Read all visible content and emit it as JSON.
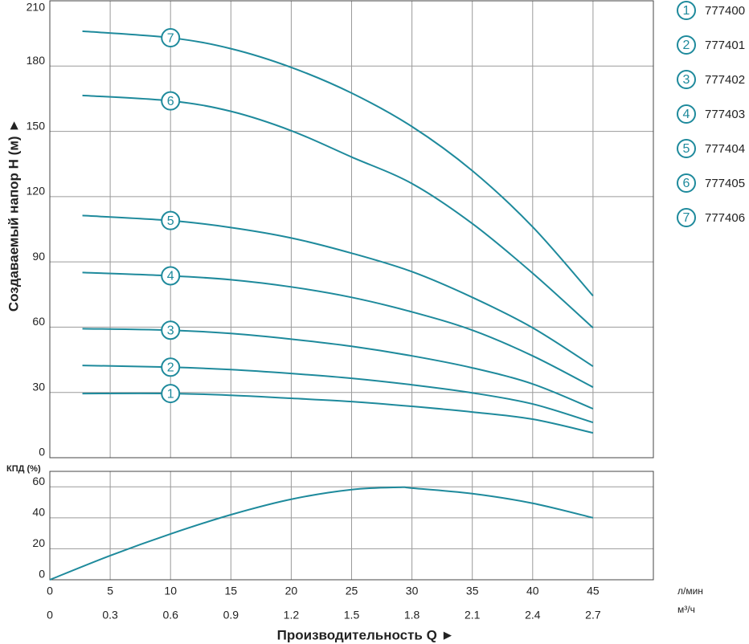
{
  "chart_data": [
    {
      "type": "line",
      "y_label": "Создаваемый напор H (м) ►",
      "ylim": [
        0,
        210
      ],
      "yticks": [
        0,
        30,
        60,
        90,
        120,
        150,
        180,
        210
      ],
      "grid": true,
      "x": [
        2.7,
        10,
        15,
        20,
        25,
        30,
        35,
        40,
        45
      ],
      "series": [
        {
          "name": "777400",
          "label": "1",
          "color": "#1e8a9c",
          "values": [
            29.5,
            29.5,
            28.7,
            27.3,
            25.8,
            23.6,
            21,
            17.7,
            11.4
          ]
        },
        {
          "name": "777401",
          "label": "2",
          "color": "#1e8a9c",
          "values": [
            42.4,
            41.6,
            40.5,
            38.7,
            36.5,
            33.5,
            29.8,
            24.7,
            16.2
          ]
        },
        {
          "name": "777402",
          "label": "3",
          "color": "#1e8a9c",
          "values": [
            59.3,
            58.6,
            57.1,
            54.5,
            51.2,
            46.8,
            41.3,
            33.9,
            22.5
          ]
        },
        {
          "name": "777403",
          "label": "4",
          "color": "#1e8a9c",
          "values": [
            85.1,
            83.6,
            81.8,
            78.5,
            73.7,
            67,
            58.6,
            46.8,
            32.4
          ]
        },
        {
          "name": "777404",
          "label": "5",
          "color": "#1e8a9c",
          "values": [
            111.3,
            109,
            105.8,
            101,
            94,
            85.5,
            73.7,
            59.7,
            42
          ]
        },
        {
          "name": "777405",
          "label": "6",
          "color": "#1e8a9c",
          "values": [
            166.5,
            164,
            159.2,
            150.3,
            138.2,
            126,
            107.6,
            84.8,
            59.7
          ]
        },
        {
          "name": "777406",
          "label": "7",
          "color": "#1e8a9c",
          "values": [
            196,
            193,
            188,
            179.4,
            167.6,
            152.2,
            131.9,
            106.1,
            74.4
          ]
        }
      ]
    },
    {
      "type": "line",
      "y_label": "КПД (%)",
      "x_label": "Производительность Q ►",
      "ylim": [
        0,
        70
      ],
      "yticks": [
        0,
        20,
        40,
        60
      ],
      "grid": true,
      "xlim": [
        0,
        50
      ],
      "xticks": [
        0,
        5,
        10,
        15,
        20,
        25,
        30,
        35,
        40,
        45
      ],
      "x_unit": "л/мин",
      "x2lim": [
        0,
        3
      ],
      "x2ticks": [
        0,
        0.3,
        0.6,
        0.9,
        1.2,
        1.5,
        1.8,
        2.1,
        2.4,
        2.7
      ],
      "x2_unit": "м³/ч",
      "x": [
        0,
        5,
        10,
        15,
        20,
        25,
        28.9,
        30,
        35,
        40,
        45
      ],
      "series": [
        {
          "color": "#1e8a9c",
          "values": [
            0,
            15.6,
            29.6,
            42,
            52,
            58.2,
            59.7,
            59.2,
            55.6,
            49.4,
            40
          ]
        }
      ]
    }
  ]
}
